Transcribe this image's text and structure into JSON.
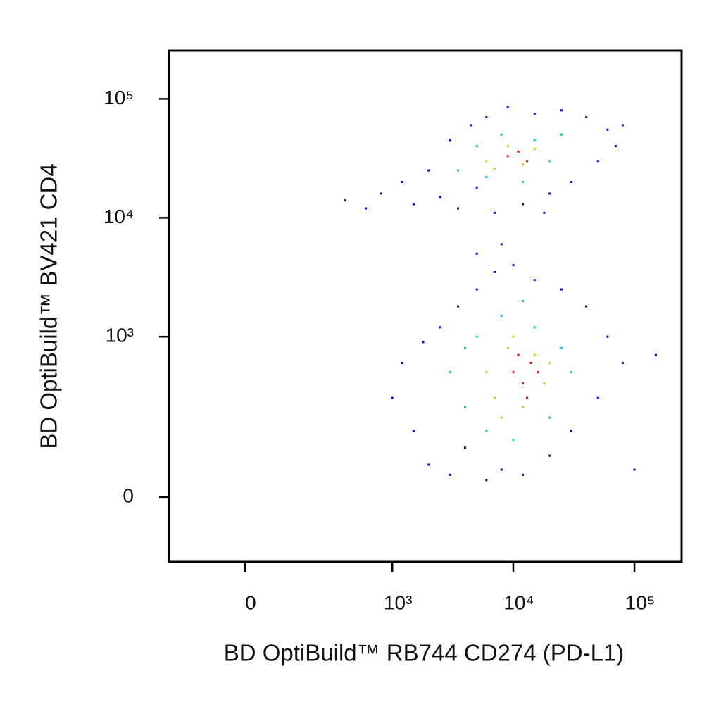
{
  "chart_data": {
    "type": "scatter",
    "x_label": "BD OptiBuild™ RB744 CD274 (PD-L1)",
    "y_label": "BD OptiBuild™ BV421 CD4",
    "scale": "biexponential",
    "xlim": [
      -244,
      245000
    ],
    "ylim": [
      -145,
      254000
    ],
    "xticks": [
      0,
      {
        "value": 1000,
        "label": "10³"
      },
      {
        "value": 10000,
        "label": "10⁴"
      },
      {
        "value": 100000,
        "label": "10⁵"
      }
    ],
    "yticks": [
      0,
      {
        "value": 1000,
        "label": "10³"
      },
      {
        "value": 10000,
        "label": "10⁴"
      },
      {
        "value": 100000,
        "label": "10⁵"
      }
    ],
    "series": [
      {
        "color": "#0000ff",
        "x": [
          400,
          600,
          800,
          1200,
          1500,
          2000,
          2500,
          3000,
          3500,
          4500,
          5000,
          6000,
          7000,
          9000,
          12000,
          15000,
          20000,
          25000,
          30000,
          40000,
          50000,
          60000,
          80000,
          70000,
          18000,
          1000,
          1200,
          1500,
          1800,
          2000,
          2500,
          3000,
          3500,
          4000,
          5000,
          6000,
          7000,
          8000,
          10000,
          12000,
          15000,
          20000,
          25000,
          30000,
          40000,
          50000,
          60000,
          80000,
          150000,
          100000,
          5000,
          8000
        ],
        "values": [
          14000,
          12000,
          16000,
          20000,
          13000,
          25000,
          15000,
          45000,
          12000,
          60000,
          18000,
          70000,
          11000,
          85000,
          13000,
          75000,
          16000,
          80000,
          20000,
          70000,
          30000,
          55000,
          60000,
          40000,
          11000,
          300,
          600,
          150,
          900,
          60,
          1200,
          40,
          1800,
          100,
          2500,
          30,
          3500,
          50,
          4000,
          40,
          3000,
          80,
          2500,
          150,
          1800,
          300,
          1000,
          600,
          700,
          50,
          5000,
          6000
        ]
      },
      {
        "color": "#00c8f0",
        "x": [
          3500,
          5000,
          6000,
          8000,
          15000,
          20000,
          25000,
          12000,
          3000,
          4000,
          5000,
          6000,
          8000,
          10000,
          15000,
          20000,
          25000,
          30000,
          12000,
          4000
        ],
        "values": [
          25000,
          40000,
          22000,
          50000,
          45000,
          30000,
          50000,
          20000,
          500,
          250,
          1000,
          150,
          1500,
          120,
          1200,
          200,
          800,
          500,
          2000,
          800
        ]
      },
      {
        "color": "#a8e000",
        "x": [
          6000,
          9000,
          12000,
          15000,
          7000,
          6000,
          7000,
          9000,
          12000,
          15000,
          18000,
          10000,
          20000,
          8000
        ],
        "values": [
          30000,
          40000,
          28000,
          38000,
          26000,
          500,
          300,
          800,
          250,
          700,
          400,
          1000,
          600,
          200
        ]
      },
      {
        "color": "#ff0000",
        "x": [
          9000,
          11000,
          13000,
          10000,
          12000,
          14000,
          16000,
          11000,
          13000
        ],
        "values": [
          33000,
          36000,
          30000,
          500,
          400,
          600,
          500,
          700,
          300
        ]
      }
    ]
  }
}
